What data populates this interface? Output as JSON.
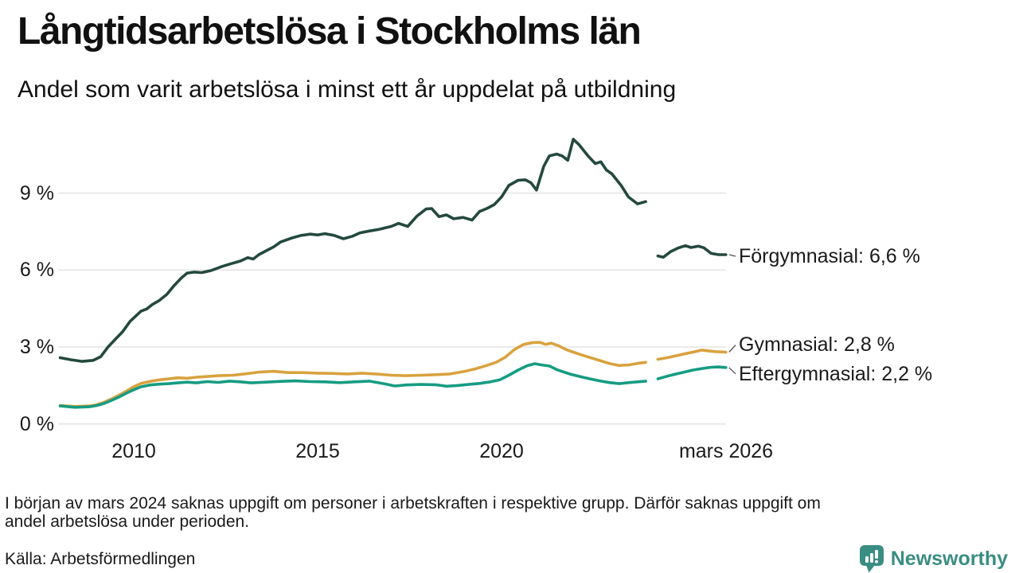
{
  "footer": {
    "note_line1": "I början av mars 2024 saknas uppgift om personer i arbetskraften i respektive grupp. Därför saknas uppgift om",
    "note_line2": "andel arbetslösa under perioden.",
    "source": "Källa: Arbetsförmedlingen",
    "brand": "Newsworthy"
  },
  "chart_data": {
    "type": "line",
    "title": "Långtidsarbetslösa i Stockholms län",
    "subtitle": "Andel som varit arbetslösa i minst ett år uppdelat på utbildning",
    "grid": true,
    "grid_color": "#e3e3e3",
    "text_color": "#1a1a1a",
    "legend_position": "right-end-labels",
    "x_axis": {
      "range": [
        2007.95,
        2026.15
      ],
      "ticks": [
        {
          "value": 2010,
          "label": "2010"
        },
        {
          "value": 2015,
          "label": "2015"
        },
        {
          "value": 2020,
          "label": "2020"
        },
        {
          "value": 2026.1,
          "label": "mars 2026"
        }
      ]
    },
    "y_axis": {
      "range": [
        0,
        11.6
      ],
      "unit": "%",
      "ticks": [
        {
          "value": 0,
          "label": "0 %"
        },
        {
          "value": 3,
          "label": "3 %"
        },
        {
          "value": 6,
          "label": "6 %"
        },
        {
          "value": 9,
          "label": "9 %"
        }
      ]
    },
    "gap_period": "mars 2024",
    "series": [
      {
        "name": "Förgymnasial",
        "end_label": "Förgymnasial: 6,6 %",
        "end_value": "6,6 %",
        "color": "#24493f",
        "label_dy": 2,
        "points": [
          [
            2008.0,
            2.58
          ],
          [
            2008.3,
            2.5
          ],
          [
            2008.6,
            2.44
          ],
          [
            2008.9,
            2.48
          ],
          [
            2009.1,
            2.62
          ],
          [
            2009.3,
            3.0
          ],
          [
            2009.5,
            3.3
          ],
          [
            2009.7,
            3.6
          ],
          [
            2009.9,
            4.0
          ],
          [
            2010.05,
            4.2
          ],
          [
            2010.2,
            4.4
          ],
          [
            2010.35,
            4.48
          ],
          [
            2010.5,
            4.65
          ],
          [
            2010.7,
            4.82
          ],
          [
            2010.9,
            5.05
          ],
          [
            2011.1,
            5.4
          ],
          [
            2011.3,
            5.7
          ],
          [
            2011.45,
            5.88
          ],
          [
            2011.65,
            5.92
          ],
          [
            2011.85,
            5.9
          ],
          [
            2012.1,
            5.98
          ],
          [
            2012.4,
            6.14
          ],
          [
            2012.65,
            6.25
          ],
          [
            2012.9,
            6.35
          ],
          [
            2013.1,
            6.48
          ],
          [
            2013.25,
            6.43
          ],
          [
            2013.4,
            6.6
          ],
          [
            2013.6,
            6.75
          ],
          [
            2013.8,
            6.9
          ],
          [
            2014.0,
            7.1
          ],
          [
            2014.3,
            7.25
          ],
          [
            2014.55,
            7.35
          ],
          [
            2014.8,
            7.4
          ],
          [
            2015.0,
            7.37
          ],
          [
            2015.2,
            7.42
          ],
          [
            2015.45,
            7.35
          ],
          [
            2015.7,
            7.22
          ],
          [
            2015.95,
            7.32
          ],
          [
            2016.15,
            7.45
          ],
          [
            2016.4,
            7.52
          ],
          [
            2016.65,
            7.58
          ],
          [
            2016.85,
            7.65
          ],
          [
            2017.0,
            7.7
          ],
          [
            2017.2,
            7.82
          ],
          [
            2017.45,
            7.7
          ],
          [
            2017.7,
            8.1
          ],
          [
            2017.95,
            8.38
          ],
          [
            2018.1,
            8.4
          ],
          [
            2018.3,
            8.08
          ],
          [
            2018.5,
            8.15
          ],
          [
            2018.7,
            8.0
          ],
          [
            2018.95,
            8.05
          ],
          [
            2019.2,
            7.95
          ],
          [
            2019.4,
            8.28
          ],
          [
            2019.6,
            8.4
          ],
          [
            2019.8,
            8.55
          ],
          [
            2020.0,
            8.85
          ],
          [
            2020.2,
            9.3
          ],
          [
            2020.45,
            9.5
          ],
          [
            2020.65,
            9.52
          ],
          [
            2020.8,
            9.4
          ],
          [
            2020.95,
            9.12
          ],
          [
            2021.15,
            10.05
          ],
          [
            2021.3,
            10.45
          ],
          [
            2021.5,
            10.52
          ],
          [
            2021.65,
            10.45
          ],
          [
            2021.8,
            10.28
          ],
          [
            2021.95,
            11.1
          ],
          [
            2022.1,
            10.9
          ],
          [
            2022.35,
            10.45
          ],
          [
            2022.55,
            10.15
          ],
          [
            2022.7,
            10.22
          ],
          [
            2022.85,
            9.9
          ],
          [
            2023.0,
            9.75
          ],
          [
            2023.25,
            9.3
          ],
          [
            2023.45,
            8.85
          ],
          [
            2023.7,
            8.58
          ],
          [
            2023.92,
            8.67
          ],
          null,
          [
            2024.25,
            6.55
          ],
          [
            2024.4,
            6.5
          ],
          [
            2024.6,
            6.72
          ],
          [
            2024.8,
            6.86
          ],
          [
            2025.0,
            6.95
          ],
          [
            2025.15,
            6.88
          ],
          [
            2025.35,
            6.93
          ],
          [
            2025.5,
            6.87
          ],
          [
            2025.7,
            6.65
          ],
          [
            2025.9,
            6.6
          ],
          [
            2026.1,
            6.6
          ]
        ]
      },
      {
        "name": "Gymnasial",
        "end_label": "Gymnasial: 2,8 %",
        "end_value": "2,8 %",
        "color": "#d9a23f",
        "label_dy": -9,
        "points": [
          [
            2008.0,
            0.72
          ],
          [
            2008.4,
            0.68
          ],
          [
            2008.8,
            0.7
          ],
          [
            2009.0,
            0.75
          ],
          [
            2009.2,
            0.85
          ],
          [
            2009.4,
            0.98
          ],
          [
            2009.6,
            1.12
          ],
          [
            2009.8,
            1.28
          ],
          [
            2010.0,
            1.45
          ],
          [
            2010.2,
            1.58
          ],
          [
            2010.45,
            1.66
          ],
          [
            2010.7,
            1.72
          ],
          [
            2010.95,
            1.76
          ],
          [
            2011.2,
            1.8
          ],
          [
            2011.45,
            1.78
          ],
          [
            2011.7,
            1.82
          ],
          [
            2012.0,
            1.85
          ],
          [
            2012.3,
            1.88
          ],
          [
            2012.7,
            1.9
          ],
          [
            2013.0,
            1.95
          ],
          [
            2013.4,
            2.02
          ],
          [
            2013.8,
            2.05
          ],
          [
            2014.2,
            2.0
          ],
          [
            2014.6,
            2.0
          ],
          [
            2015.0,
            1.98
          ],
          [
            2015.4,
            1.97
          ],
          [
            2015.8,
            1.95
          ],
          [
            2016.2,
            1.98
          ],
          [
            2016.6,
            1.95
          ],
          [
            2017.0,
            1.9
          ],
          [
            2017.4,
            1.88
          ],
          [
            2017.8,
            1.9
          ],
          [
            2018.2,
            1.92
          ],
          [
            2018.6,
            1.95
          ],
          [
            2019.0,
            2.05
          ],
          [
            2019.3,
            2.15
          ],
          [
            2019.6,
            2.28
          ],
          [
            2019.85,
            2.4
          ],
          [
            2020.1,
            2.6
          ],
          [
            2020.35,
            2.9
          ],
          [
            2020.6,
            3.1
          ],
          [
            2020.85,
            3.17
          ],
          [
            2021.05,
            3.18
          ],
          [
            2021.2,
            3.1
          ],
          [
            2021.35,
            3.15
          ],
          [
            2021.55,
            3.05
          ],
          [
            2021.75,
            2.9
          ],
          [
            2021.95,
            2.8
          ],
          [
            2022.2,
            2.68
          ],
          [
            2022.45,
            2.57
          ],
          [
            2022.7,
            2.46
          ],
          [
            2022.95,
            2.35
          ],
          [
            2023.2,
            2.28
          ],
          [
            2023.45,
            2.3
          ],
          [
            2023.7,
            2.36
          ],
          [
            2023.92,
            2.4
          ],
          null,
          [
            2024.25,
            2.52
          ],
          [
            2024.5,
            2.58
          ],
          [
            2024.75,
            2.66
          ],
          [
            2025.0,
            2.74
          ],
          [
            2025.2,
            2.8
          ],
          [
            2025.45,
            2.88
          ],
          [
            2025.6,
            2.85
          ],
          [
            2025.8,
            2.82
          ],
          [
            2026.1,
            2.8
          ]
        ]
      },
      {
        "name": "Eftergymnasial",
        "end_label": "Eftergymnasial: 2,2 %",
        "end_value": "2,2 %",
        "color": "#169c82",
        "label_dy": 8,
        "points": [
          [
            2008.0,
            0.7
          ],
          [
            2008.4,
            0.65
          ],
          [
            2008.8,
            0.67
          ],
          [
            2009.0,
            0.72
          ],
          [
            2009.2,
            0.8
          ],
          [
            2009.4,
            0.92
          ],
          [
            2009.6,
            1.05
          ],
          [
            2009.8,
            1.2
          ],
          [
            2010.0,
            1.33
          ],
          [
            2010.2,
            1.45
          ],
          [
            2010.45,
            1.52
          ],
          [
            2010.7,
            1.55
          ],
          [
            2010.95,
            1.57
          ],
          [
            2011.2,
            1.6
          ],
          [
            2011.45,
            1.63
          ],
          [
            2011.7,
            1.6
          ],
          [
            2012.0,
            1.65
          ],
          [
            2012.3,
            1.62
          ],
          [
            2012.6,
            1.67
          ],
          [
            2012.9,
            1.64
          ],
          [
            2013.2,
            1.6
          ],
          [
            2013.6,
            1.63
          ],
          [
            2014.0,
            1.66
          ],
          [
            2014.4,
            1.68
          ],
          [
            2014.8,
            1.65
          ],
          [
            2015.2,
            1.64
          ],
          [
            2015.6,
            1.61
          ],
          [
            2016.0,
            1.64
          ],
          [
            2016.4,
            1.67
          ],
          [
            2016.8,
            1.57
          ],
          [
            2017.1,
            1.48
          ],
          [
            2017.4,
            1.52
          ],
          [
            2017.8,
            1.54
          ],
          [
            2018.2,
            1.53
          ],
          [
            2018.5,
            1.47
          ],
          [
            2018.8,
            1.5
          ],
          [
            2019.1,
            1.54
          ],
          [
            2019.4,
            1.58
          ],
          [
            2019.7,
            1.64
          ],
          [
            2019.95,
            1.72
          ],
          [
            2020.2,
            1.9
          ],
          [
            2020.45,
            2.1
          ],
          [
            2020.7,
            2.27
          ],
          [
            2020.9,
            2.35
          ],
          [
            2021.1,
            2.3
          ],
          [
            2021.3,
            2.26
          ],
          [
            2021.5,
            2.12
          ],
          [
            2021.7,
            2.02
          ],
          [
            2021.9,
            1.93
          ],
          [
            2022.15,
            1.84
          ],
          [
            2022.4,
            1.76
          ],
          [
            2022.7,
            1.67
          ],
          [
            2022.95,
            1.61
          ],
          [
            2023.2,
            1.57
          ],
          [
            2023.45,
            1.61
          ],
          [
            2023.7,
            1.64
          ],
          [
            2023.92,
            1.67
          ],
          null,
          [
            2024.25,
            1.76
          ],
          [
            2024.5,
            1.86
          ],
          [
            2024.75,
            1.95
          ],
          [
            2025.0,
            2.03
          ],
          [
            2025.2,
            2.1
          ],
          [
            2025.45,
            2.16
          ],
          [
            2025.7,
            2.21
          ],
          [
            2025.9,
            2.22
          ],
          [
            2026.1,
            2.2
          ]
        ]
      }
    ]
  }
}
